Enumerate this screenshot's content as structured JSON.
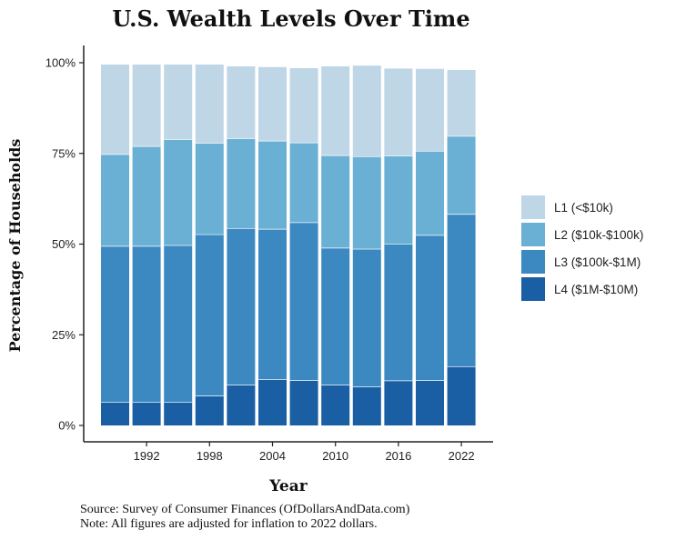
{
  "chart_data": {
    "type": "bar",
    "stacked": true,
    "title": "U.S. Wealth Levels Over Time",
    "xlabel": "Year",
    "ylabel": "Percentage of Households",
    "ylim": [
      0,
      1
    ],
    "yticks": [
      "0%",
      "25%",
      "50%",
      "75%",
      "100%"
    ],
    "xticks": [
      "1992",
      "1998",
      "2004",
      "2010",
      "2016",
      "2022"
    ],
    "categories": [
      "1989",
      "1992",
      "1995",
      "1998",
      "2001",
      "2004",
      "2007",
      "2010",
      "2013",
      "2016",
      "2019",
      "2022"
    ],
    "series": [
      {
        "name": "L4 ($1M-$10M)",
        "color": "#1a5ea3",
        "values": [
          0.065,
          0.065,
          0.065,
          0.082,
          0.112,
          0.127,
          0.125,
          0.112,
          0.107,
          0.124,
          0.125,
          0.163
        ]
      },
      {
        "name": "L3 ($100k-$1M)",
        "color": "#3c89c2",
        "values": [
          0.43,
          0.43,
          0.432,
          0.445,
          0.432,
          0.415,
          0.435,
          0.378,
          0.38,
          0.377,
          0.4,
          0.42
        ]
      },
      {
        "name": "L2 ($10k-$100k)",
        "color": "#6aafd4",
        "values": [
          0.253,
          0.275,
          0.292,
          0.252,
          0.248,
          0.243,
          0.22,
          0.255,
          0.255,
          0.243,
          0.232,
          0.215
        ]
      },
      {
        "name": "L1 (<$10k)",
        "color": "#bfd6e6",
        "values": [
          0.247,
          0.225,
          0.206,
          0.216,
          0.198,
          0.203,
          0.205,
          0.245,
          0.25,
          0.24,
          0.226,
          0.182
        ]
      }
    ],
    "legend": [
      "L1 (<$10k)",
      "L2 ($10k-$100k)",
      "L3 ($100k-$1M)",
      "L4 ($1M-$10M)"
    ],
    "legend_position": "right",
    "grid": false
  },
  "caption": {
    "source": "Source:  Survey of Consumer Finances (OfDollarsAndData.com)",
    "note": "Note: All figures are adjusted for inflation to 2022 dollars."
  }
}
